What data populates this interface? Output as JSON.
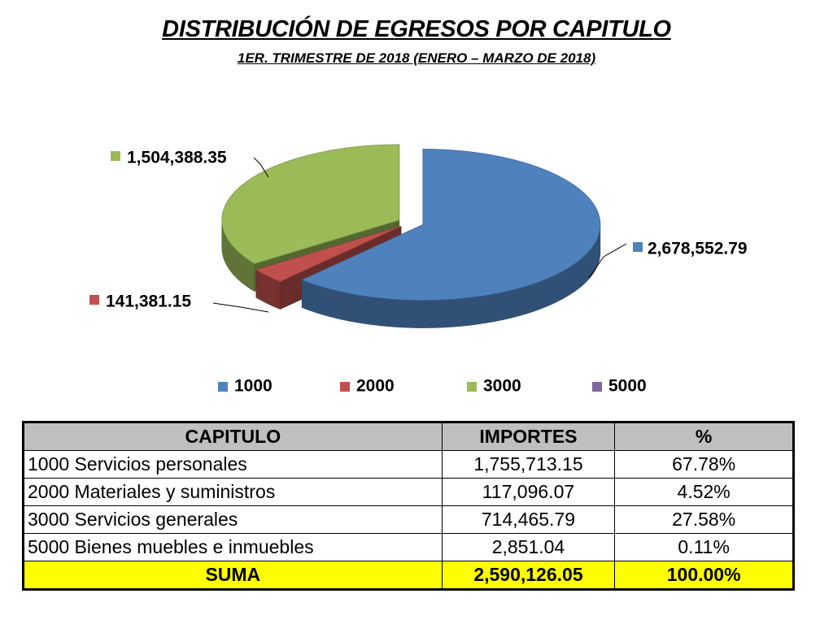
{
  "header": {
    "title": "DISTRIBUCIÓN DE EGRESOS POR CAPITULO",
    "subtitle": "1ER. TRIMESTRE DE 2018 (ENERO – MARZO DE 2018)"
  },
  "chart_data": {
    "type": "pie",
    "style": "3d-exploded",
    "categories": [
      "1000",
      "2000",
      "3000",
      "5000"
    ],
    "values": [
      2678552.79,
      141381.15,
      1504388.35,
      0
    ],
    "data_labels": [
      "2,678,552.79",
      "141,381.15",
      "1,504,388.35",
      ""
    ],
    "colors": [
      "#4f81bd",
      "#c0504d",
      "#9bbb59",
      "#8064a2"
    ],
    "legend_position": "bottom"
  },
  "table": {
    "headers": [
      "CAPITULO",
      "IMPORTES",
      "%"
    ],
    "rows": [
      [
        "1000 Servicios personales",
        "1,755,713.15",
        "67.78%"
      ],
      [
        "2000 Materiales y suministros",
        "117,096.07",
        "4.52%"
      ],
      [
        "3000 Servicios generales",
        "714,465.79",
        "27.58%"
      ],
      [
        "5000 Bienes muebles e inmuebles",
        "2,851.04",
        "0.11%"
      ]
    ],
    "total": [
      "SUMA",
      "2,590,126.05",
      "100.00%"
    ]
  }
}
